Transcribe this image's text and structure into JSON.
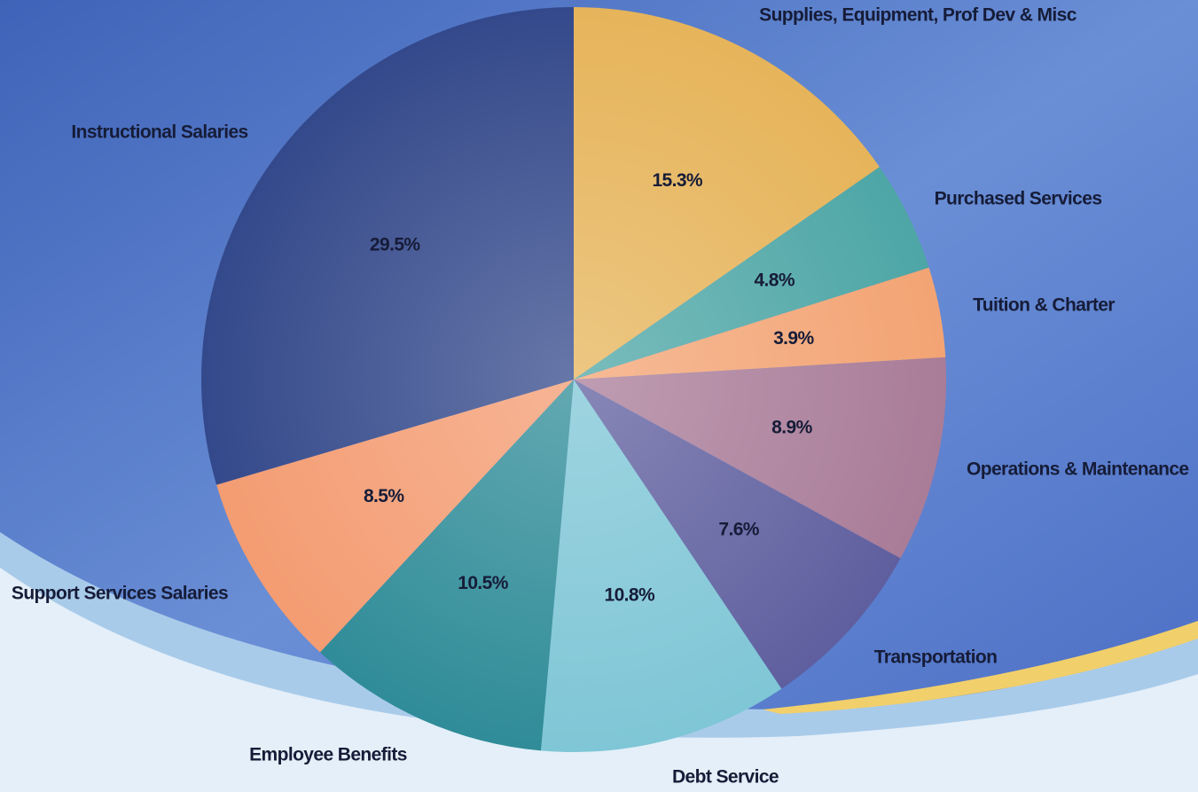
{
  "chart_data": {
    "type": "pie",
    "categories": [
      "Supplies, Equipment, Prof Dev & Misc",
      "Purchased Services",
      "Tuition & Charter",
      "Operations & Maintenance",
      "Transportation",
      "Debt Service",
      "Employee Benefits",
      "Support Services Salaries",
      "Instructional Salaries"
    ],
    "values": [
      15.3,
      4.8,
      3.9,
      8.9,
      7.6,
      10.8,
      10.5,
      8.5,
      29.5
    ],
    "value_labels": [
      "15.3%",
      "4.8%",
      "3.9%",
      "8.9%",
      "7.6%",
      "10.8%",
      "10.5%",
      "8.5%",
      "29.5%"
    ],
    "colors": [
      "#e6b45a",
      "#4ea6a6",
      "#f3a474",
      "#a97c98",
      "#5f5f9f",
      "#7fc6d6",
      "#2f8c98",
      "#f49c72",
      "#34498b"
    ]
  }
}
